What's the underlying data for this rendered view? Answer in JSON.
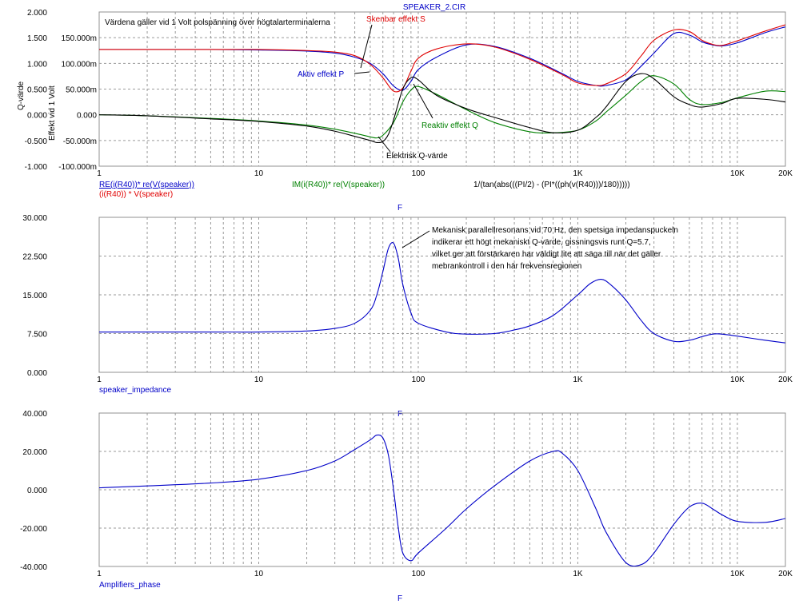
{
  "title": "SPEAKER_2.CIR",
  "colors": {
    "blue": "#0000c8",
    "red": "#e00000",
    "green": "#008000",
    "black": "#000000",
    "grid": "#9a9a9a",
    "frame": "#909090"
  },
  "chart_data": [
    {
      "type": "line",
      "x_scale": "log",
      "xlim": [
        1,
        20000
      ],
      "x_ticks": [
        {
          "value": 1,
          "label": "1"
        },
        {
          "value": 10,
          "label": "10"
        },
        {
          "value": 100,
          "label": "100"
        },
        {
          "value": 1000,
          "label": "1K"
        },
        {
          "value": 10000,
          "label": "10K"
        },
        {
          "value": 20000,
          "label": "20K"
        }
      ],
      "xlabel": "F",
      "ylabel_left": "Q-värde",
      "ylabel_right": "Effekt vid 1 Volt",
      "left_axis": {
        "ylim": [
          -1.0,
          2.0
        ],
        "ticks": [
          {
            "value": 2.0,
            "label": "2.000"
          },
          {
            "value": 1.5,
            "label": "1.500"
          },
          {
            "value": 1.0,
            "label": "1.000"
          },
          {
            "value": 0.5,
            "label": "0.500"
          },
          {
            "value": 0.0,
            "label": "0.000"
          },
          {
            "value": -0.5,
            "label": "-0.500"
          },
          {
            "value": -1.0,
            "label": "-1.000"
          }
        ]
      },
      "right_axis": {
        "ticks": [
          {
            "value": 0.15,
            "label": "150.000m"
          },
          {
            "value": 0.1,
            "label": "100.000m"
          },
          {
            "value": 0.05,
            "label": "50.000m"
          },
          {
            "value": 0.0,
            "label": "0.000"
          },
          {
            "value": -0.05,
            "label": "-50.000m"
          },
          {
            "value": -0.1,
            "label": "-100.000m"
          }
        ]
      },
      "series": [
        {
          "name": "RE(i(R40))* re(V(speaker))",
          "color": "#0000c8",
          "x": [
            1,
            2,
            5,
            10,
            20,
            30,
            40,
            50,
            60,
            70,
            80,
            90,
            100,
            130,
            200,
            300,
            500,
            800,
            1000,
            1300,
            1500,
            2000,
            2500,
            3000,
            4000,
            5000,
            6000,
            7000,
            8000,
            10000,
            15000,
            20000
          ],
          "y": [
            1.27,
            1.27,
            1.27,
            1.26,
            1.24,
            1.2,
            1.12,
            1.0,
            0.8,
            0.56,
            0.48,
            0.65,
            0.88,
            1.12,
            1.36,
            1.33,
            1.1,
            0.8,
            0.65,
            0.57,
            0.57,
            0.68,
            0.95,
            1.2,
            1.58,
            1.55,
            1.42,
            1.36,
            1.34,
            1.4,
            1.6,
            1.71
          ]
        },
        {
          "name": "(i(R40)) * V(speaker)",
          "color": "#e00000",
          "x": [
            1,
            2,
            5,
            10,
            20,
            30,
            40,
            50,
            60,
            70,
            80,
            90,
            100,
            130,
            200,
            300,
            500,
            800,
            1000,
            1300,
            1500,
            2000,
            2500,
            3000,
            4000,
            5000,
            6000,
            7000,
            8000,
            10000,
            15000,
            20000
          ],
          "y": [
            1.27,
            1.27,
            1.27,
            1.27,
            1.25,
            1.22,
            1.15,
            0.98,
            0.72,
            0.46,
            0.52,
            0.85,
            1.1,
            1.28,
            1.38,
            1.32,
            1.08,
            0.78,
            0.62,
            0.57,
            0.6,
            0.8,
            1.15,
            1.45,
            1.65,
            1.62,
            1.45,
            1.37,
            1.35,
            1.44,
            1.63,
            1.75
          ]
        },
        {
          "name": "IM(i(R40))* re(V(speaker))",
          "color": "#008000",
          "x": [
            1,
            2,
            5,
            10,
            20,
            30,
            40,
            50,
            55,
            60,
            70,
            80,
            90,
            100,
            130,
            200,
            300,
            500,
            700,
            1000,
            1300,
            1500,
            2000,
            2500,
            3000,
            4000,
            5000,
            6000,
            8000,
            10000,
            15000,
            20000
          ],
          "y": [
            0.0,
            -0.02,
            -0.07,
            -0.12,
            -0.2,
            -0.28,
            -0.36,
            -0.43,
            -0.45,
            -0.4,
            -0.15,
            0.25,
            0.48,
            0.55,
            0.4,
            0.1,
            -0.15,
            -0.33,
            -0.35,
            -0.3,
            -0.12,
            0.05,
            0.38,
            0.65,
            0.76,
            0.6,
            0.3,
            0.2,
            0.24,
            0.33,
            0.46,
            0.45
          ]
        },
        {
          "name": "1/(tan(abs(((PI/2) - (PI*((ph(v(R40)))/180)))))",
          "color": "#000000",
          "x": [
            1,
            2,
            5,
            10,
            20,
            30,
            40,
            50,
            55,
            60,
            65,
            70,
            80,
            90,
            100,
            130,
            200,
            300,
            500,
            700,
            1000,
            1300,
            1500,
            2000,
            2500,
            3000,
            4000,
            5000,
            6000,
            8000,
            10000,
            15000,
            20000
          ],
          "y": [
            0.0,
            -0.02,
            -0.08,
            -0.13,
            -0.22,
            -0.32,
            -0.42,
            -0.5,
            -0.54,
            -0.52,
            -0.38,
            -0.1,
            0.5,
            0.72,
            0.68,
            0.38,
            0.12,
            -0.05,
            -0.25,
            -0.35,
            -0.3,
            -0.05,
            0.15,
            0.65,
            0.8,
            0.7,
            0.35,
            0.2,
            0.15,
            0.22,
            0.32,
            0.3,
            0.25
          ]
        }
      ],
      "annotations": [
        "Värdena gäller vid 1 Volt polspänning över högtalarterminalerna",
        "Skenbar effekt S",
        "Aktiv effekt P",
        "Reaktiv effekt Q",
        "Elektrisk Q-värde"
      ],
      "grid": true
    },
    {
      "type": "line",
      "x_scale": "log",
      "xlim": [
        1,
        20000
      ],
      "x_ticks": [
        {
          "value": 1,
          "label": "1"
        },
        {
          "value": 10,
          "label": "10"
        },
        {
          "value": 100,
          "label": "100"
        },
        {
          "value": 1000,
          "label": "1K"
        },
        {
          "value": 10000,
          "label": "10K"
        },
        {
          "value": 20000,
          "label": "20K"
        }
      ],
      "xlabel": "F",
      "ylim": [
        0,
        30
      ],
      "y_ticks": [
        {
          "value": 30,
          "label": "30.000"
        },
        {
          "value": 22.5,
          "label": "22.500"
        },
        {
          "value": 15,
          "label": "15.000"
        },
        {
          "value": 7.5,
          "label": "7.500"
        },
        {
          "value": 0,
          "label": "0.000"
        }
      ],
      "series": [
        {
          "name": "speaker_impedance",
          "color": "#0000c8",
          "x": [
            1,
            5,
            10,
            20,
            30,
            40,
            50,
            55,
            60,
            65,
            70,
            75,
            80,
            90,
            100,
            150,
            200,
            300,
            400,
            500,
            700,
            1000,
            1200,
            1400,
            1600,
            2000,
            2500,
            3000,
            4000,
            5000,
            6000,
            7000,
            8000,
            10000,
            15000,
            20000
          ],
          "y": [
            7.8,
            7.8,
            7.8,
            8.0,
            8.5,
            9.5,
            12.0,
            15.0,
            19.5,
            24.0,
            25.0,
            22.0,
            17.0,
            11.5,
            9.5,
            7.8,
            7.4,
            7.5,
            8.2,
            9.0,
            11.0,
            15.0,
            17.2,
            18.0,
            17.0,
            14.0,
            10.0,
            7.5,
            6.0,
            6.2,
            6.9,
            7.4,
            7.4,
            7.0,
            6.2,
            5.7
          ]
        }
      ],
      "annotations": [
        "Mekanisk parallellresonans vid 70 Hz, den spetsiga impedanspuckeln",
        "indikerar ett högt mekaniskt Q-värde, gissningsvis runt Q=5.7,",
        "vilket ger att förstärkaren har väldigt lite att säga till när det gäller",
        "mebrankontroll i den här frekvensregionen"
      ],
      "grid": true
    },
    {
      "type": "line",
      "x_scale": "log",
      "xlim": [
        1,
        20000
      ],
      "x_ticks": [
        {
          "value": 1,
          "label": "1"
        },
        {
          "value": 10,
          "label": "10"
        },
        {
          "value": 100,
          "label": "100"
        },
        {
          "value": 1000,
          "label": "1K"
        },
        {
          "value": 10000,
          "label": "10K"
        },
        {
          "value": 20000,
          "label": "20K"
        }
      ],
      "xlabel": "F",
      "ylim": [
        -40,
        40
      ],
      "y_ticks": [
        {
          "value": 40,
          "label": "40.000"
        },
        {
          "value": 20,
          "label": "20.000"
        },
        {
          "value": 0,
          "label": "0.000"
        },
        {
          "value": -20,
          "label": "-20.000"
        },
        {
          "value": -40,
          "label": "-40.000"
        }
      ],
      "series": [
        {
          "name": "Amplifiers_phase",
          "color": "#0000c8",
          "x": [
            1,
            2,
            5,
            10,
            20,
            30,
            40,
            50,
            55,
            60,
            65,
            70,
            75,
            80,
            90,
            100,
            150,
            200,
            300,
            500,
            700,
            800,
            1000,
            1300,
            1500,
            2000,
            2500,
            3000,
            4000,
            5000,
            6000,
            7000,
            8000,
            10000,
            15000,
            20000
          ],
          "y": [
            1.0,
            2.0,
            3.5,
            5.5,
            10.0,
            15.0,
            21.0,
            26.0,
            28.5,
            27.0,
            18.0,
            0.0,
            -20.0,
            -33.0,
            -37.0,
            -33.0,
            -20.0,
            -10.0,
            2.0,
            15.0,
            20.0,
            19.0,
            10.0,
            -10.0,
            -22.0,
            -38.0,
            -39.0,
            -33.0,
            -18.0,
            -9.0,
            -7.0,
            -10.0,
            -13.0,
            -16.5,
            -17.0,
            -15.0
          ]
        }
      ],
      "grid": true
    }
  ]
}
